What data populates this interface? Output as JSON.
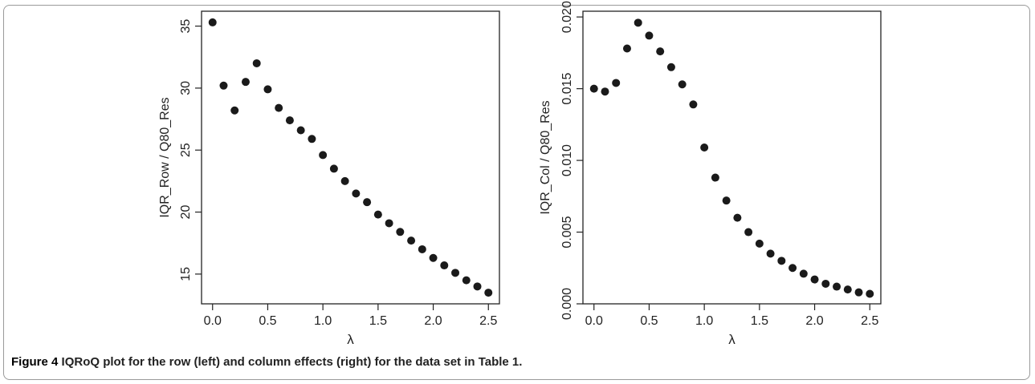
{
  "caption": {
    "label": "Figure 4",
    "text": " IQRoQ plot for the row (left) and column effects (right) for the data set in Table 1."
  },
  "chart_data": [
    {
      "type": "scatter",
      "xlabel": "λ",
      "ylabel": "IQR_Row / Q80_Res",
      "xlim": [
        -0.1,
        2.6
      ],
      "ylim": [
        12.6,
        36.2
      ],
      "xticks": [
        0.0,
        0.5,
        1.0,
        1.5,
        2.0,
        2.5
      ],
      "xtick_labels": [
        "0.0",
        "0.5",
        "1.0",
        "1.5",
        "2.0",
        "2.5"
      ],
      "yticks": [
        15,
        20,
        25,
        30,
        35
      ],
      "ytick_labels": [
        "15",
        "20",
        "25",
        "30",
        "35"
      ],
      "grid": false,
      "x": [
        0.0,
        0.1,
        0.2,
        0.3,
        0.4,
        0.5,
        0.6,
        0.7,
        0.8,
        0.9,
        1.0,
        1.1,
        1.2,
        1.3,
        1.4,
        1.5,
        1.6,
        1.7,
        1.8,
        1.9,
        2.0,
        2.1,
        2.2,
        2.3,
        2.4,
        2.5
      ],
      "y": [
        35.3,
        30.2,
        28.2,
        30.5,
        32.0,
        29.9,
        28.4,
        27.4,
        26.6,
        25.9,
        24.6,
        23.5,
        22.5,
        21.5,
        20.8,
        19.8,
        19.1,
        18.4,
        17.7,
        17.0,
        16.3,
        15.7,
        15.1,
        14.5,
        14.0,
        13.5
      ],
      "marker_color": "#1a1a1a"
    },
    {
      "type": "scatter",
      "xlabel": "λ",
      "ylabel": "IQR_Col / Q80_Res",
      "xlim": [
        -0.1,
        2.6
      ],
      "ylim": [
        0.0,
        0.0204
      ],
      "xticks": [
        0.0,
        0.5,
        1.0,
        1.5,
        2.0,
        2.5
      ],
      "xtick_labels": [
        "0.0",
        "0.5",
        "1.0",
        "1.5",
        "2.0",
        "2.5"
      ],
      "yticks": [
        0.0,
        0.005,
        0.01,
        0.015,
        0.02
      ],
      "ytick_labels": [
        "0.000",
        "0.005",
        "0.010",
        "0.015",
        "0.020"
      ],
      "grid": false,
      "x": [
        0.0,
        0.1,
        0.2,
        0.3,
        0.4,
        0.5,
        0.6,
        0.7,
        0.8,
        0.9,
        1.0,
        1.1,
        1.2,
        1.3,
        1.4,
        1.5,
        1.6,
        1.7,
        1.8,
        1.9,
        2.0,
        2.1,
        2.2,
        2.3,
        2.4,
        2.5
      ],
      "y": [
        0.015,
        0.0148,
        0.0154,
        0.0178,
        0.0196,
        0.0187,
        0.0176,
        0.0165,
        0.0153,
        0.0139,
        0.0109,
        0.0088,
        0.0072,
        0.006,
        0.005,
        0.0042,
        0.0035,
        0.003,
        0.0025,
        0.0021,
        0.0017,
        0.0014,
        0.0012,
        0.001,
        0.0008,
        0.0007
      ],
      "marker_color": "#1a1a1a"
    }
  ]
}
